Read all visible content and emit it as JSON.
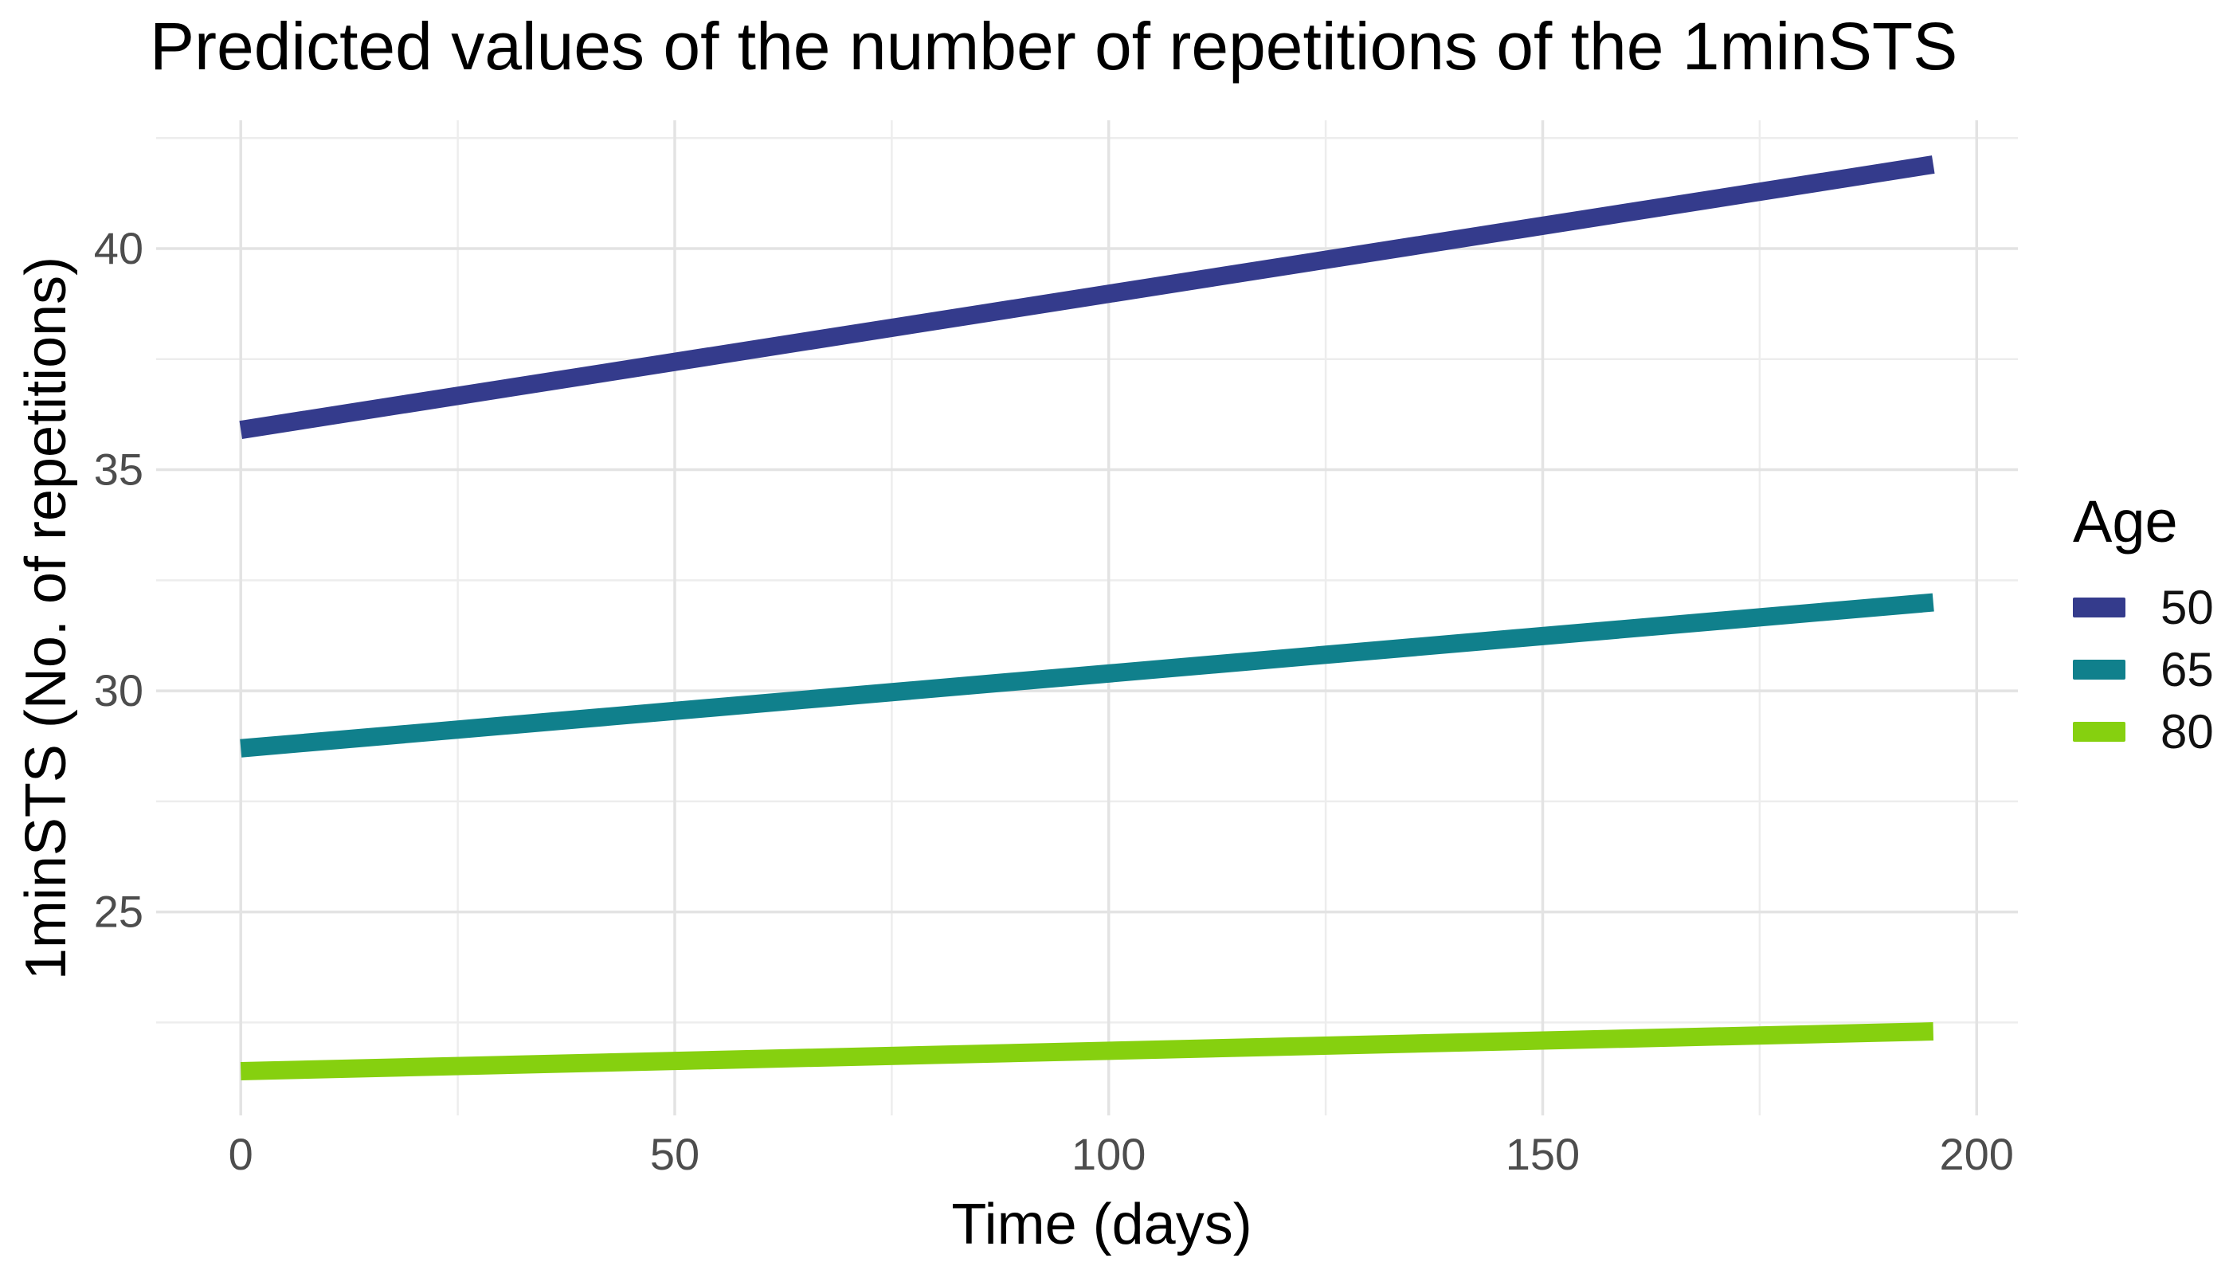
{
  "chart_data": {
    "type": "line",
    "title": "Predicted values of the number of repetitions of the 1minSTS",
    "xlabel": "Time (days)",
    "ylabel": "1minSTS (No. of repetitions)",
    "legend_title": "Age",
    "legend_position": "right",
    "grid": true,
    "x_ticks": [
      0,
      50,
      100,
      150,
      200
    ],
    "x_minor_ticks": [
      25,
      75,
      125,
      175
    ],
    "y_ticks": [
      25,
      30,
      35,
      40
    ],
    "y_minor_ticks": [
      22.5,
      27.5,
      32.5,
      37.5,
      42.5
    ],
    "xlim": [
      -9.75,
      204.75
    ],
    "ylim": [
      20.4,
      42.9
    ],
    "series": [
      {
        "name": "50",
        "color": "#343B8C",
        "x": [
          0,
          195
        ],
        "y": [
          35.9,
          41.9
        ]
      },
      {
        "name": "65",
        "color": "#10808C",
        "x": [
          0,
          195
        ],
        "y": [
          28.7,
          32.0
        ]
      },
      {
        "name": "80",
        "color": "#86D00F",
        "x": [
          0,
          195
        ],
        "y": [
          21.4,
          22.3
        ]
      }
    ],
    "style": {
      "grid_major_color": "#e3e3e3",
      "grid_minor_color": "#ededed",
      "tick_label_color": "#4d4d4d",
      "line_width": 23
    }
  }
}
